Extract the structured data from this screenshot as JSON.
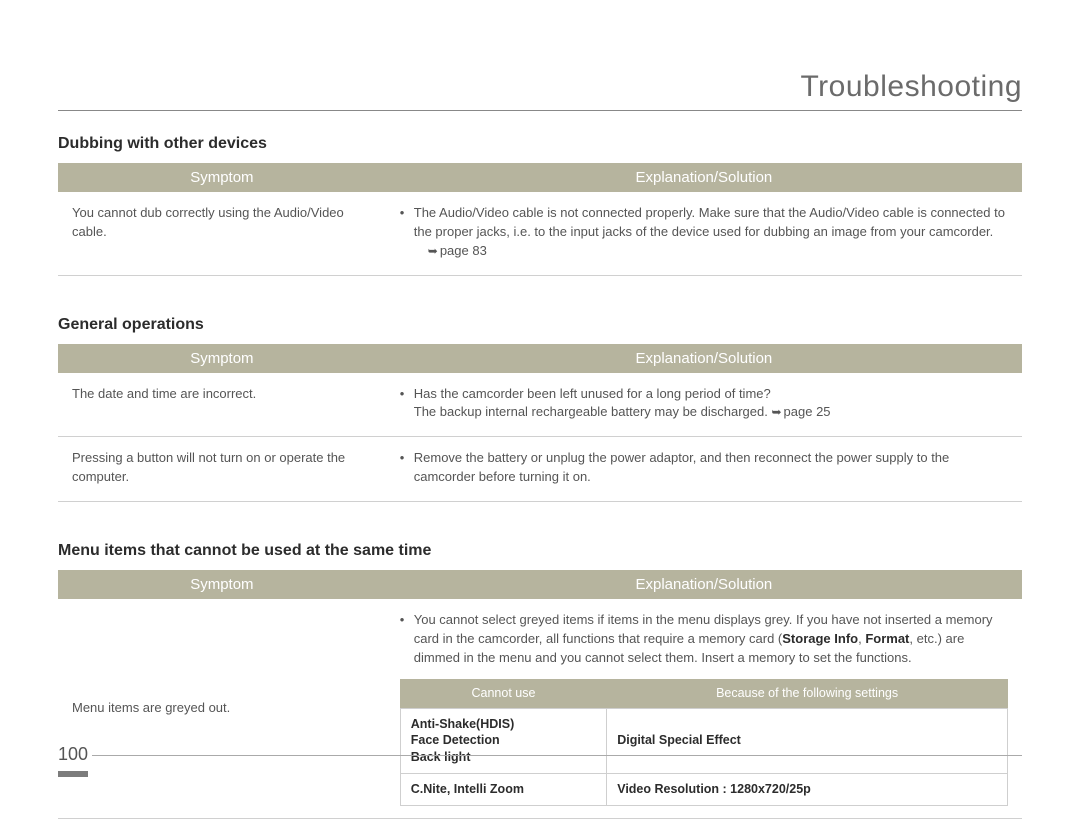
{
  "page": {
    "title": "Troubleshooting",
    "number": "100"
  },
  "colors": {
    "header_bg": "#b6b49e",
    "header_text": "#ffffff",
    "body_text": "#555555",
    "heading_text": "#2c2c2c",
    "rule": "#d0d0d0"
  },
  "sections": [
    {
      "heading": "Dubbing with other devices",
      "columns": [
        "Symptom",
        "Explanation/Solution"
      ],
      "rows": [
        {
          "symptom": "You cannot dub correctly using the Audio/Video cable.",
          "explanation_bullets": [
            "The Audio/Video cable is not connected properly. Make sure that the Audio/Video cable is connected to the proper jacks, i.e. to the input jacks of the device used for dubbing an image from your camcorder."
          ],
          "pageref": "page 83"
        }
      ]
    },
    {
      "heading": "General operations",
      "columns": [
        "Symptom",
        "Explanation/Solution"
      ],
      "rows": [
        {
          "symptom": "The date and time are incorrect.",
          "explanation_bullets": [
            "Has the camcorder been left unused for a long period of time?"
          ],
          "explanation_extra": "The backup internal rechargeable battery may be discharged.",
          "pageref_inline": "page 25"
        },
        {
          "symptom": "Pressing a button will not turn on or operate the computer.",
          "explanation_bullets": [
            "Remove the battery or unplug the power adaptor, and then reconnect the power supply to the camcorder before turning it on."
          ]
        }
      ]
    },
    {
      "heading": "Menu items that cannot be used at the same time",
      "columns": [
        "Symptom",
        "Explanation/Solution"
      ],
      "rows": [
        {
          "symptom": "Menu items are greyed out.",
          "explanation_html": "You cannot select greyed items if items in the menu displays grey. If you have not inserted a memory card in the camcorder, all functions that require a memory card (<span class=\"bold-inline\">Storage Info</span>, <span class=\"bold-inline\">Format</span>, etc.) are dimmed in the menu and you cannot select them.  Insert a memory to set the functions.",
          "inner_table": {
            "columns": [
              "Cannot use",
              "Because of the following settings"
            ],
            "rows": [
              {
                "a": "Anti-Shake(HDIS)\nFace Detection\nBack light",
                "b": "Digital Special Effect"
              },
              {
                "a": "C.Nite, Intelli Zoom",
                "b": "Video Resolution : 1280x720/25p"
              }
            ]
          }
        }
      ]
    }
  ]
}
